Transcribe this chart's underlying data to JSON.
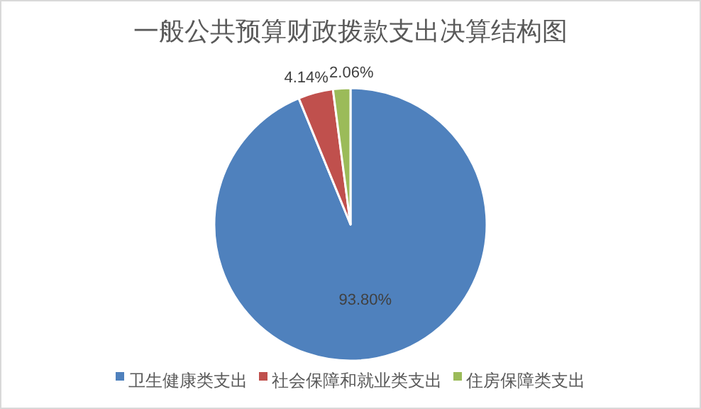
{
  "chart_data": {
    "type": "pie",
    "title": "一般公共预算财政拨款支出决算结构图",
    "categories": [
      "卫生健康类支出",
      "社会保障和就业类支出",
      "住房保障类支出"
    ],
    "values": [
      93.8,
      4.14,
      2.06
    ],
    "colors": [
      "#4f81bd",
      "#c0504d",
      "#9bbb59"
    ],
    "value_labels": [
      "93.80%",
      "4.14%",
      "2.06%"
    ],
    "legend": "bottom"
  }
}
